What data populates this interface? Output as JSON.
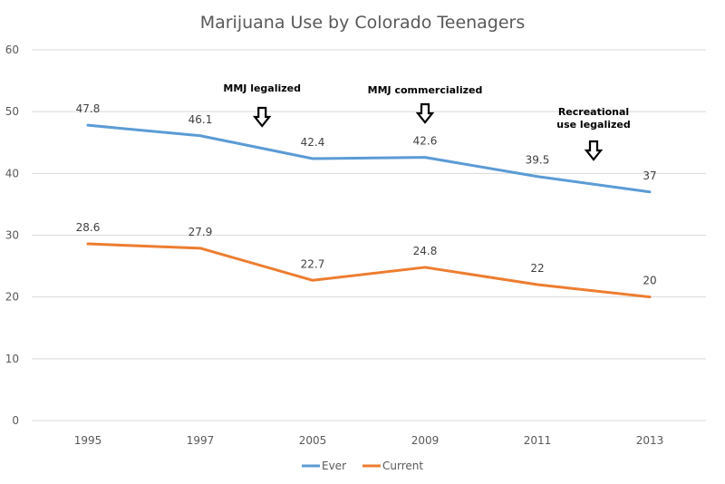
{
  "chart_data": {
    "type": "line",
    "title": "Marijuana Use by Colorado Teenagers",
    "xlabel": "",
    "ylabel": "",
    "categories": [
      "1995",
      "1997",
      "2005",
      "2009",
      "2011",
      "2013"
    ],
    "ylim": [
      0,
      60
    ],
    "yticks": [
      0,
      10,
      20,
      30,
      40,
      50,
      60
    ],
    "grid": true,
    "legend_position": "bottom-center",
    "series": [
      {
        "name": "Ever",
        "color": "#5B9BD5",
        "values": [
          47.8,
          46.1,
          42.4,
          42.6,
          39.5,
          37
        ],
        "labels": [
          "47.8",
          "46.1",
          "42.4",
          "42.6",
          "39.5",
          "37"
        ]
      },
      {
        "name": "Current",
        "color": "#ED7D31",
        "values": [
          28.6,
          27.9,
          22.7,
          24.8,
          22,
          20
        ],
        "labels": [
          "28.6",
          "27.9",
          "22.7",
          "24.8",
          "22",
          "20"
        ]
      }
    ],
    "annotations": [
      {
        "lines": [
          "MMJ legalized"
        ],
        "between": [
          "1997",
          "2005"
        ],
        "x_fraction": 0.55,
        "marker": "down-arrow"
      },
      {
        "lines": [
          "MMJ commercialized"
        ],
        "at": "2009",
        "marker": "down-arrow"
      },
      {
        "lines": [
          "Recreational",
          "use legalized"
        ],
        "between": [
          "2011",
          "2013"
        ],
        "x_fraction": 0.5,
        "marker": "down-arrow"
      }
    ]
  }
}
